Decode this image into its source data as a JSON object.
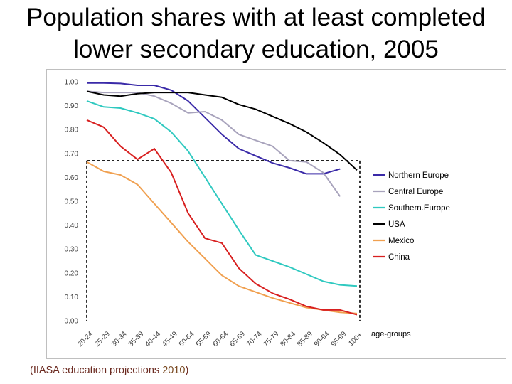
{
  "slide": {
    "title": "Population shares with at least completed\nlower secondary education, 2005",
    "source_prefix": "(IIASA education projections ",
    "source_year": "2010",
    "source_suffix": ")"
  },
  "chart_data": {
    "type": "line",
    "title": "",
    "xlabel": "age-groups",
    "ylabel": "",
    "ylim": [
      0,
      1
    ],
    "yticks": [
      "0.00",
      "0.10",
      "0.20",
      "0.30",
      "0.40",
      "0.50",
      "0.60",
      "0.70",
      "0.80",
      "0.90",
      "1.00"
    ],
    "grid": false,
    "legend_position": "right",
    "categories": [
      "20-24",
      "25-29",
      "30-34",
      "35-39",
      "40-44",
      "45-49",
      "50-54",
      "55-59",
      "60-64",
      "65-69",
      "70-74",
      "75-79",
      "80-84",
      "85-89",
      "90-94",
      "95-99",
      "100+"
    ],
    "series": [
      {
        "name": "Northern Europe",
        "color": "#3a2aa8",
        "values": [
          0.995,
          0.995,
          0.993,
          0.985,
          0.985,
          0.965,
          0.92,
          0.85,
          0.78,
          0.72,
          0.69,
          0.66,
          0.64,
          0.615,
          0.615,
          0.635,
          null
        ]
      },
      {
        "name": "Central Europe",
        "color": "#a8a3bc",
        "values": [
          0.96,
          0.955,
          0.955,
          0.955,
          0.94,
          0.91,
          0.87,
          0.875,
          0.84,
          0.78,
          0.755,
          0.73,
          0.67,
          0.665,
          0.62,
          0.52,
          null
        ]
      },
      {
        "name": "Southern.Europe",
        "color": "#2fc9c0",
        "values": [
          0.92,
          0.895,
          0.89,
          0.87,
          0.845,
          0.79,
          0.71,
          0.6,
          0.49,
          0.38,
          0.275,
          0.25,
          0.225,
          0.195,
          0.165,
          0.15,
          0.145
        ]
      },
      {
        "name": "USA",
        "color": "#000000",
        "values": [
          0.96,
          0.945,
          0.94,
          0.95,
          0.955,
          0.955,
          0.955,
          0.945,
          0.935,
          0.905,
          0.885,
          0.855,
          0.825,
          0.79,
          0.745,
          0.695,
          0.63
        ]
      },
      {
        "name": "Mexico",
        "color": "#f0a050",
        "values": [
          0.665,
          0.625,
          0.61,
          0.57,
          0.49,
          0.41,
          0.33,
          0.26,
          0.19,
          0.145,
          0.12,
          0.095,
          0.075,
          0.055,
          0.045,
          0.035,
          0.03
        ]
      },
      {
        "name": "China",
        "color": "#d82020",
        "values": [
          0.84,
          0.81,
          0.73,
          0.675,
          0.72,
          0.62,
          0.45,
          0.345,
          0.325,
          0.22,
          0.155,
          0.115,
          0.09,
          0.06,
          0.045,
          0.045,
          0.025
        ]
      }
    ],
    "guide_lines": {
      "color": "#000000",
      "level": 0.67,
      "from_category": "20-24",
      "to_category": "100+"
    }
  }
}
